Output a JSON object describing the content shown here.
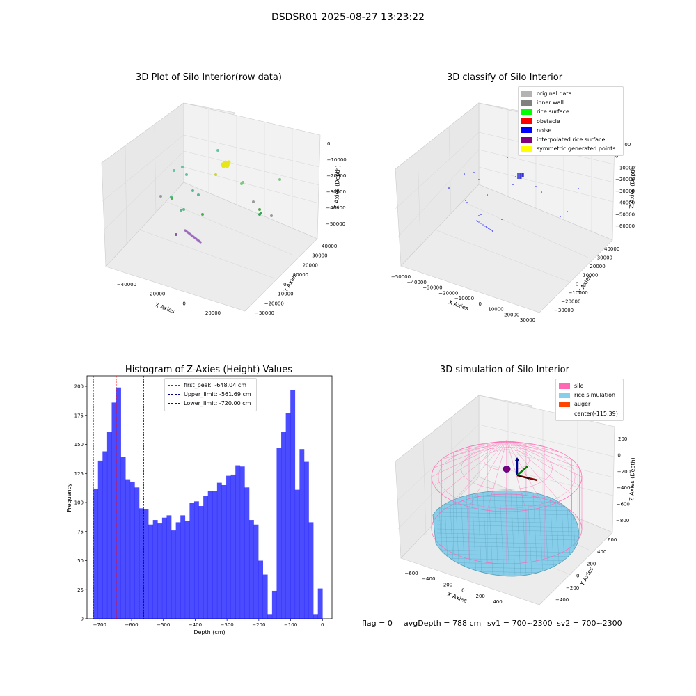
{
  "suptitle": "DSDSR01 2025-08-27 13:23:22",
  "panels": {
    "raw": {
      "title": "3D Plot of Silo Interior(row data)",
      "xlabel": "X Axies",
      "ylabel": "Y Axies",
      "zlabel": "Z Axies (Depth)",
      "xticks": [
        "−40000",
        "−20000",
        "0",
        "20000"
      ],
      "yticks": [
        "40000",
        "30000",
        "20000",
        "10000",
        "0",
        "−10000",
        "−20000",
        "−30000"
      ],
      "zticks": [
        "0",
        "−10000",
        "−20000",
        "−30000",
        "−40000",
        "−50000"
      ]
    },
    "classify": {
      "title": "3D classify of Silo Interior",
      "xlabel": "X Axies",
      "ylabel": "Y Axies",
      "zlabel": "Z Axies (Depth)",
      "xticks": [
        "−50000",
        "−40000",
        "−30000",
        "−20000",
        "−10000",
        "0",
        "10000",
        "20000",
        "30000"
      ],
      "yticks": [
        "40000",
        "30000",
        "20000",
        "10000",
        "0",
        "−10000",
        "−20000",
        "−30000"
      ],
      "zticks": [
        "10000",
        "0",
        "−10000",
        "−20000",
        "−30000",
        "−40000",
        "−50000",
        "−60000"
      ],
      "legend": [
        {
          "label": "original data",
          "color": "#b3b3b3"
        },
        {
          "label": "inner wall",
          "color": "#808080"
        },
        {
          "label": "rice surface",
          "color": "#00ff00"
        },
        {
          "label": "obstacle",
          "color": "#ff0000"
        },
        {
          "label": "noise",
          "color": "#0000ff"
        },
        {
          "label": "interpolated rice surface",
          "color": "#800080"
        },
        {
          "label": "symmetric generated points",
          "color": "#ffff00"
        }
      ]
    },
    "simulation": {
      "title": "3D simulation of Silo Interior",
      "xlabel": "X Axies",
      "ylabel": "Y Axies",
      "zlabel": "Z Axies (Depth)",
      "xticks": [
        "−600",
        "−400",
        "−200",
        "0",
        "200",
        "400"
      ],
      "yticks": [
        "600",
        "400",
        "200",
        "0",
        "−200",
        "−400"
      ],
      "zticks": [
        "200",
        "0",
        "−200",
        "−400",
        "−600",
        "−800"
      ],
      "legend": [
        {
          "label": "silo",
          "color": "#ff69b4"
        },
        {
          "label": "rice simulation",
          "color": "#87ceeb"
        },
        {
          "label": "auger",
          "color": "#ff4500"
        },
        {
          "label": "center(-115,39)",
          "color": ""
        }
      ]
    }
  },
  "chart_data": {
    "type": "bar",
    "title": "Histogram of Z-Axies (Height) Values",
    "xlabel": "Depth (cm)",
    "ylabel": "Frequency",
    "xlim": [
      -740,
      30
    ],
    "ylim": [
      0,
      209
    ],
    "bin_start": -720,
    "bin_width": 14.4,
    "bar_color": "#0000ff",
    "values": [
      112,
      136,
      144,
      161,
      186,
      199,
      139,
      120,
      118,
      113,
      95,
      94,
      81,
      85,
      82,
      87,
      89,
      76,
      83,
      89,
      84,
      100,
      101,
      97,
      106,
      110,
      110,
      117,
      115,
      123,
      124,
      132,
      131,
      113,
      85,
      81,
      50,
      38,
      4,
      24,
      147,
      161,
      177,
      197,
      111,
      146,
      135,
      83,
      4,
      26
    ],
    "xticks": [
      "−700",
      "−600",
      "−500",
      "−400",
      "−300",
      "−200",
      "−100",
      "0"
    ],
    "yticks": [
      "0",
      "25",
      "50",
      "75",
      "100",
      "125",
      "150",
      "175",
      "200"
    ],
    "vlines": [
      {
        "label": "first_peak: -648.04 cm",
        "x": -648.04,
        "color": "#ff0000"
      },
      {
        "label": "Upper_limit: -561.69 cm",
        "x": -561.69,
        "color": "#00008b"
      },
      {
        "label": "Lower_limit: -720.00 cm",
        "x": -720.0,
        "color": "#0000ff"
      }
    ],
    "legend_position": "upper-center"
  },
  "footer": {
    "flag": "flag = 0",
    "avg": "avgDepth = 788 cm",
    "sv1": "sv1 = 700~2300",
    "sv2": "sv2 = 700~2300"
  }
}
